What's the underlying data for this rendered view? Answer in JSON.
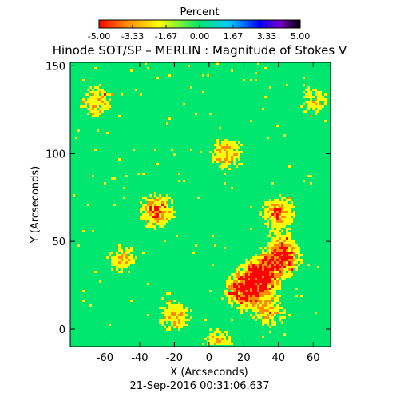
{
  "chart_data": {
    "type": "heatmap",
    "title": "Hinode SOT/SP – MERLIN : Magnitude of Stokes V",
    "xlabel": "X (Arcseconds)",
    "ylabel": "Y (Arcseconds)",
    "xlim": [
      -80,
      70
    ],
    "ylim": [
      -10,
      152
    ],
    "x_ticks": [
      "-60",
      "-40",
      "-20",
      "0",
      "20",
      "40",
      "60"
    ],
    "x_tick_values": [
      -60,
      -40,
      -20,
      0,
      20,
      40,
      60
    ],
    "y_ticks": [
      "0",
      "50",
      "100",
      "150"
    ],
    "y_tick_values": [
      0,
      50,
      100,
      150
    ],
    "colorbar": {
      "label": "Percent",
      "ticks": [
        "-5.00",
        "-3.33",
        "-1.67",
        "0.00",
        "1.67",
        "3.33",
        "5.00"
      ],
      "range": [
        -5,
        5
      ],
      "colors": [
        "#ff0000",
        "#ff8c00",
        "#ffff00",
        "#00e66e",
        "#00c8ff",
        "#0000ff",
        "#7800c8",
        "#000000"
      ]
    },
    "background_value": 0.0,
    "background_color": "#00e66e",
    "active_regions": [
      {
        "x": 30,
        "y": 30,
        "peak": 5.0
      },
      {
        "x": 42,
        "y": 42,
        "peak": 4.6
      },
      {
        "x": 20,
        "y": 22,
        "peak": 4.2
      },
      {
        "x": -30,
        "y": 67,
        "peak": 3.4
      },
      {
        "x": 40,
        "y": 66,
        "peak": 3.0
      },
      {
        "x": 10,
        "y": 100,
        "peak": 2.6
      },
      {
        "x": -20,
        "y": 7,
        "peak": 2.5
      },
      {
        "x": -65,
        "y": 130,
        "peak": 2.4
      },
      {
        "x": 35,
        "y": 10,
        "peak": 2.3
      },
      {
        "x": 5,
        "y": -8,
        "peak": 2.2
      },
      {
        "x": -50,
        "y": 40,
        "peak": 2.0
      },
      {
        "x": 60,
        "y": 130,
        "peak": 1.9
      }
    ],
    "grid": false,
    "legend": "colorbar top"
  },
  "footer": {
    "timestamp": "21-Sep-2016 00:31:06.637"
  }
}
